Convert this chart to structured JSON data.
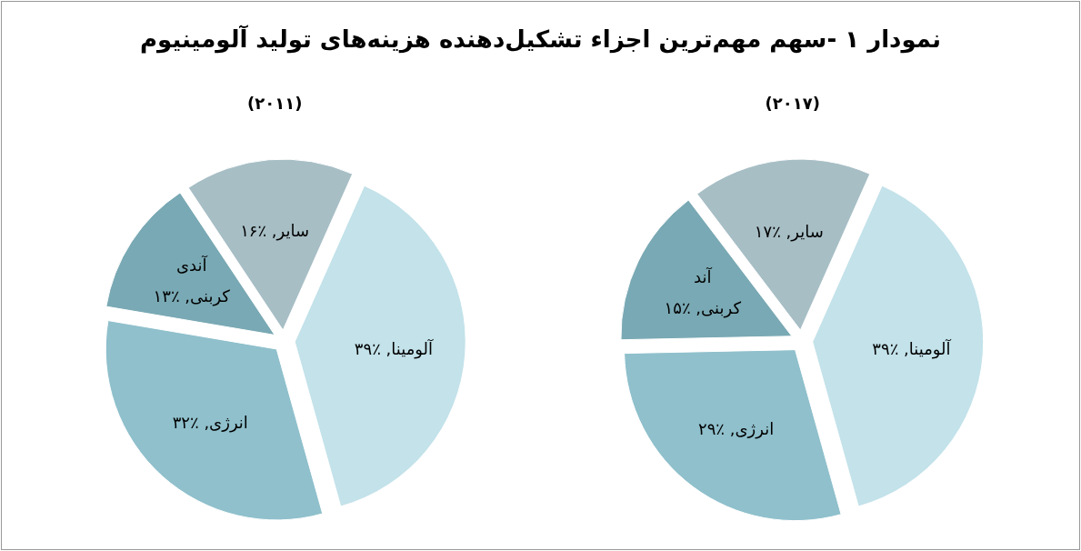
{
  "chart_data": [
    {
      "type": "pie",
      "title": "نمودار ۱ -سهم مهم‌ترین اجزاء تشکیل‌دهنده هزینه‌های تولید آلومینیوم",
      "subtitle": "(۲۰۱۱)",
      "categories": [
        "آلومینا",
        "انرژی",
        "آندی کربنی",
        "سایر"
      ],
      "values": [
        39,
        32,
        13,
        16
      ],
      "value_labels": [
        "٪۳۹",
        "٪۳۲",
        "٪۱۳",
        "٪۱۶"
      ],
      "colors": [
        "#c3e2ea",
        "#8fc0cc",
        "#79a9b4",
        "#a7bec5"
      ]
    },
    {
      "type": "pie",
      "subtitle": "(۲۰۱۷)",
      "categories": [
        "آلومینا",
        "انرژی",
        "آند کربنی",
        "سایر"
      ],
      "values": [
        39,
        29,
        15,
        17
      ],
      "value_labels": [
        "٪۳۹",
        "٪۲۹",
        "٪۱۵",
        "٪۱۷"
      ],
      "colors": [
        "#c3e2ea",
        "#8fc0cc",
        "#79a9b4",
        "#a7bec5"
      ]
    }
  ]
}
